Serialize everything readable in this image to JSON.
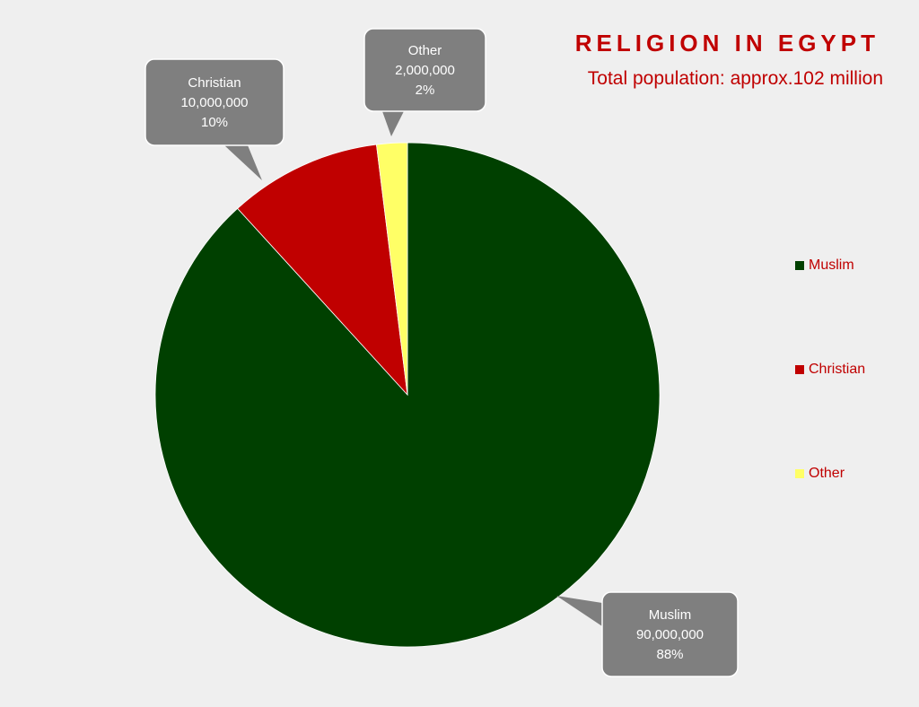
{
  "title": "RELIGION IN EGYPT",
  "subtitle": "Total population: approx.102 million",
  "colors": {
    "background": "#efefef",
    "title": "#c00000",
    "callout": "#7f7f7f"
  },
  "chart_data": {
    "type": "pie",
    "slices": [
      {
        "label": "Muslim",
        "value": 90000000,
        "value_text": "90,000,000",
        "percent": 88,
        "percent_text": "88%",
        "color": "#004000"
      },
      {
        "label": "Christian",
        "value": 10000000,
        "value_text": "10,000,000",
        "percent": 10,
        "percent_text": "10%",
        "color": "#c00000"
      },
      {
        "label": "Other",
        "value": 2000000,
        "value_text": "2,000,000",
        "percent": 2,
        "percent_text": "2%",
        "color": "#ffff66"
      }
    ],
    "legend": {
      "position": "right",
      "entries": [
        "Muslim",
        "Christian",
        "Other"
      ]
    }
  }
}
